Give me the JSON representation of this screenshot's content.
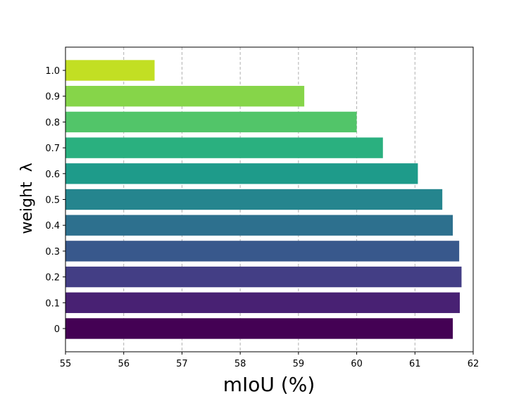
{
  "chart_data": {
    "type": "bar",
    "orientation": "horizontal",
    "categories": [
      "0",
      "0.1",
      "0.2",
      "0.3",
      "0.4",
      "0.5",
      "0.6",
      "0.7",
      "0.8",
      "0.9",
      "1.0"
    ],
    "values": [
      61.65,
      61.77,
      61.8,
      61.76,
      61.65,
      61.47,
      61.05,
      60.45,
      60.0,
      59.1,
      56.53
    ],
    "xlabel": "mIoU (%)",
    "ylabel": "weight  λ",
    "xlim": [
      55,
      62
    ],
    "xticks": [
      "55",
      "56",
      "57",
      "58",
      "59",
      "60",
      "61",
      "62"
    ],
    "grid": "vertical dashed",
    "colors": [
      "#440154",
      "#482173",
      "#433e85",
      "#38588c",
      "#2d708e",
      "#25858e",
      "#1e9b8a",
      "#2ab07f",
      "#52c569",
      "#86d549",
      "#c2df23"
    ]
  }
}
